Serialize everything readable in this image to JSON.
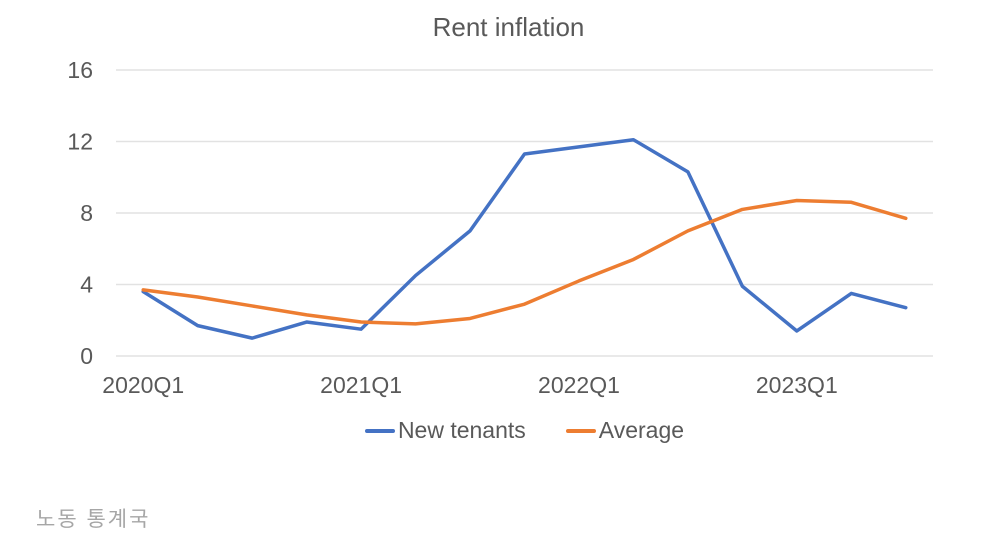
{
  "chart_data": {
    "type": "line",
    "title": "Rent inflation",
    "categories": [
      "2020Q1",
      "2020Q2",
      "2020Q3",
      "2020Q4",
      "2021Q1",
      "2021Q2",
      "2021Q3",
      "2021Q4",
      "2022Q1",
      "2022Q2",
      "2022Q3",
      "2022Q4",
      "2023Q1",
      "2023Q2",
      "2023Q3"
    ],
    "x_tick_every": 4,
    "x_tick_labels_shown": [
      "2020Q1",
      "2021Q1",
      "2022Q1",
      "2023Q1"
    ],
    "yticks": [
      0,
      4,
      8,
      12,
      16
    ],
    "ylim": [
      0,
      16
    ],
    "grid": true,
    "legend_position": "bottom",
    "series": [
      {
        "name": "New tenants",
        "color": "#4472C4",
        "values": [
          3.6,
          1.7,
          1.0,
          1.9,
          1.5,
          4.5,
          7.0,
          11.3,
          11.7,
          12.1,
          10.3,
          3.9,
          1.4,
          3.5,
          2.7
        ]
      },
      {
        "name": "Average",
        "color": "#ED7D31",
        "values": [
          3.7,
          3.3,
          2.8,
          2.3,
          1.9,
          1.8,
          2.1,
          2.9,
          4.2,
          5.4,
          7.0,
          8.2,
          8.7,
          8.6,
          7.7
        ]
      }
    ]
  },
  "source_note": "노동 통계국",
  "colors": {
    "axis_text": "#595959",
    "title_text": "#595959",
    "gridline": "#e2e2e2",
    "source_text": "#a6a6a6"
  }
}
